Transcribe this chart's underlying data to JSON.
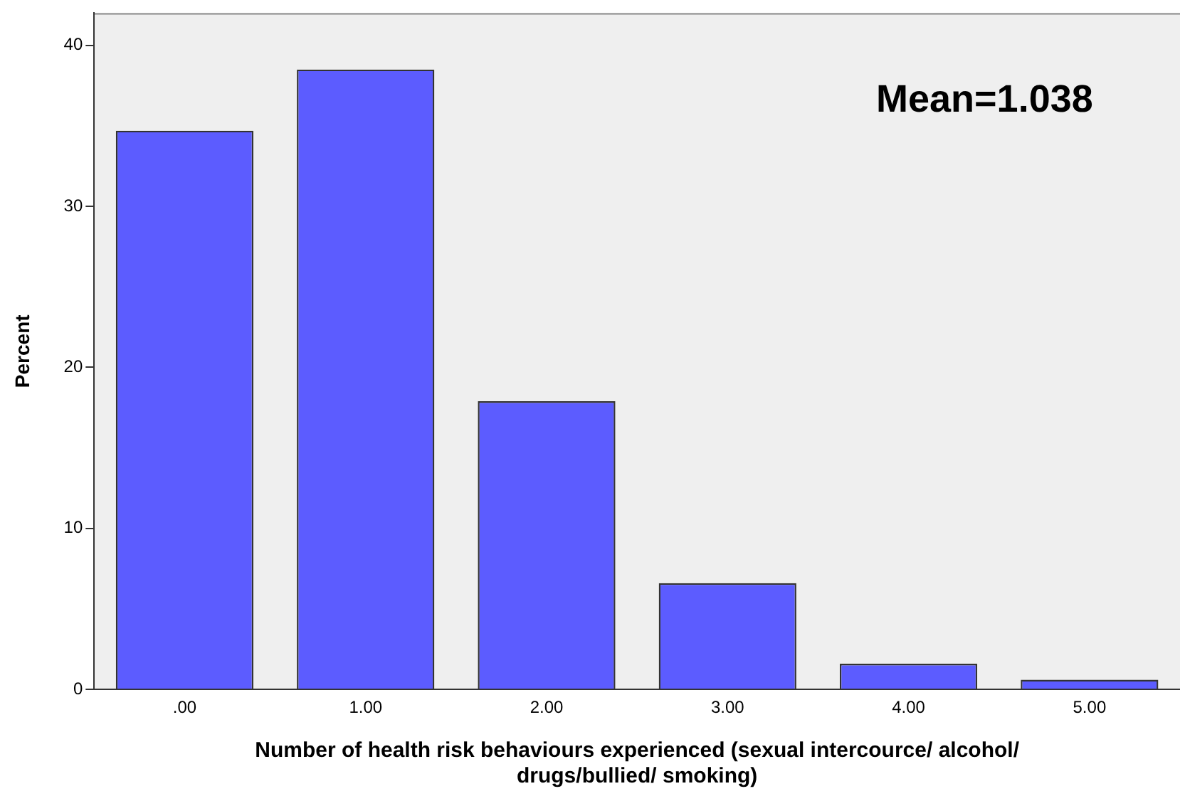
{
  "chart_data": {
    "type": "bar",
    "categories": [
      ".00",
      "1.00",
      "2.00",
      "3.00",
      "4.00",
      "5.00"
    ],
    "values": [
      34.7,
      38.5,
      17.9,
      6.6,
      1.6,
      0.6
    ],
    "color": "#5c5cff",
    "xlabel": "Number of health risk behaviours experienced (sexual intercource/ alcohol/ drugs/bullied/ smoking)",
    "ylabel": "Percent",
    "ylim": [
      0,
      42
    ],
    "yticks": [
      0,
      10,
      20,
      30,
      40
    ],
    "grid": false,
    "annotations": [
      "Mean=1.038"
    ]
  }
}
